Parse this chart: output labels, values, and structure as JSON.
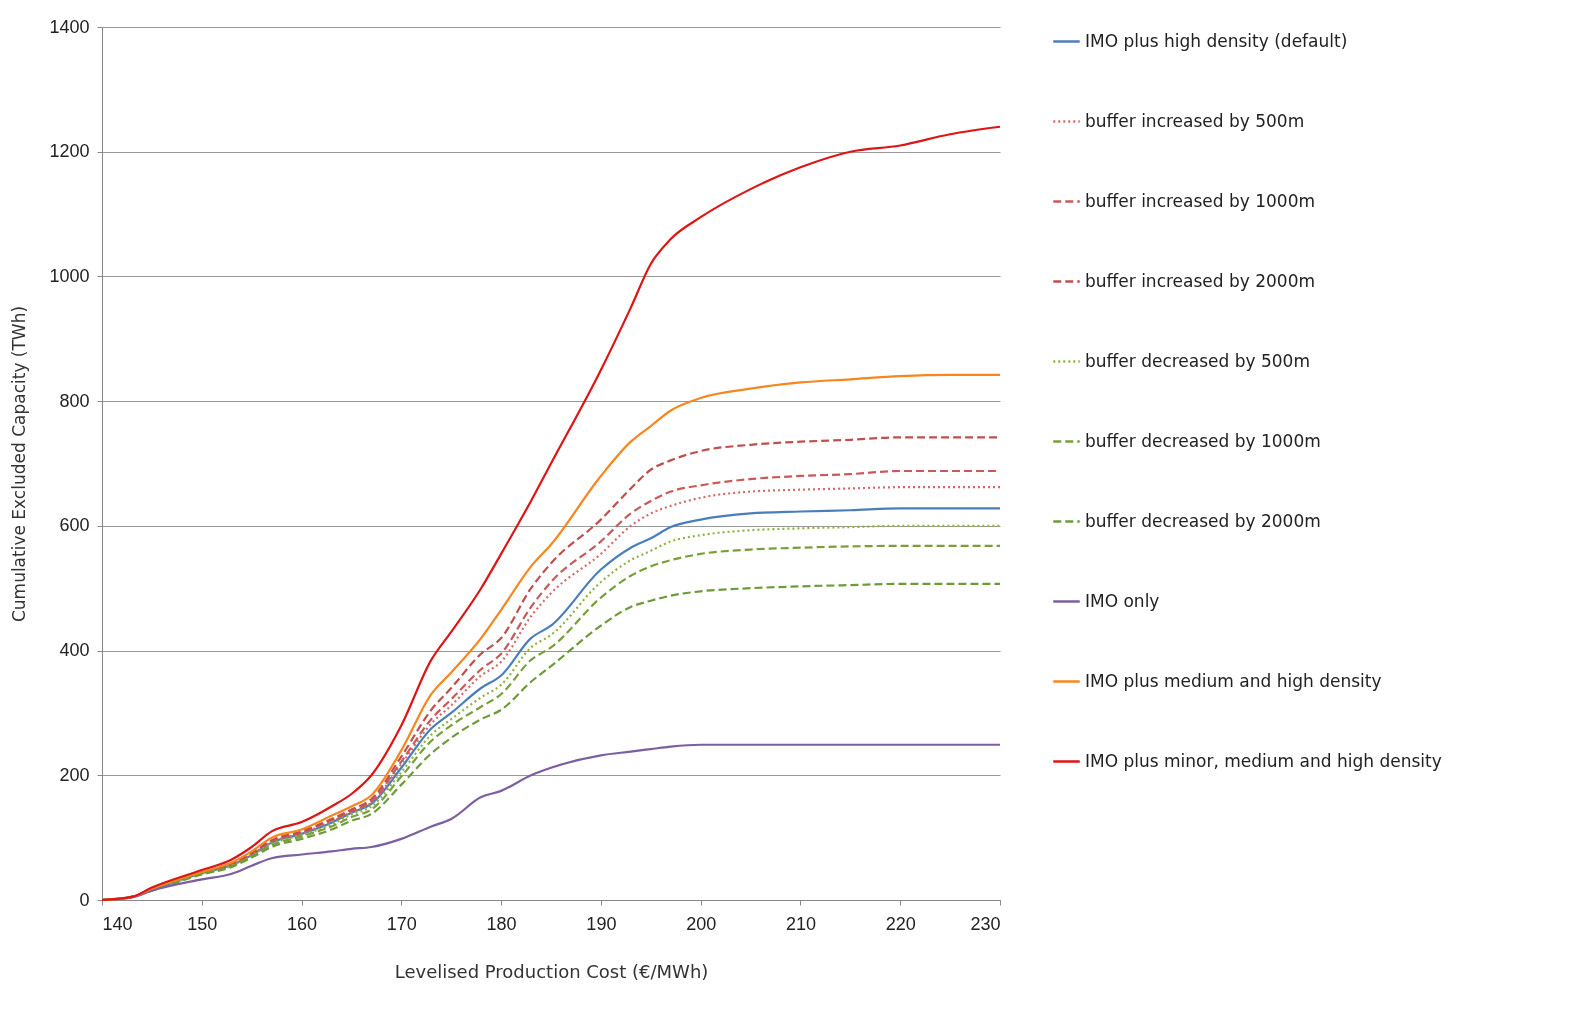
{
  "chart_data": {
    "type": "line",
    "xlabel": "Levelised Production Cost (€/MWh)",
    "ylabel": "Cumulative Excluded Capacity (TWh)",
    "x": [
      140,
      143,
      145,
      150,
      153,
      155,
      157,
      160,
      163,
      165,
      167,
      170,
      173,
      175,
      178,
      180,
      183,
      185,
      190,
      193,
      195,
      197,
      200,
      205,
      210,
      215,
      220,
      225,
      230
    ],
    "xlim": [
      140,
      230
    ],
    "xticks": [
      140,
      150,
      160,
      170,
      180,
      190,
      200,
      210,
      220,
      230
    ],
    "ylim": [
      0,
      1400
    ],
    "yticks": [
      0,
      200,
      400,
      600,
      800,
      1000,
      1200,
      1400
    ],
    "grid": "y",
    "legend": "right",
    "marker": "none",
    "series": [
      {
        "name": "IMO plus high density (default)",
        "color": "#4a7ebb",
        "line_style": "solid",
        "values": [
          0,
          5,
          16,
          43,
          56,
          72,
          92,
          106,
          124,
          140,
          154,
          212,
          275,
          300,
          340,
          360,
          420,
          440,
          530,
          565,
          580,
          598,
          610,
          620,
          623,
          625,
          628,
          628,
          628
        ]
      },
      {
        "name": "buffer increased by 500m",
        "color": "#d46a6a",
        "line_style": "dotted",
        "values": [
          0,
          5,
          17,
          44,
          57,
          73,
          93,
          107,
          126,
          141,
          156,
          218,
          283,
          312,
          360,
          382,
          455,
          492,
          555,
          600,
          620,
          632,
          645,
          655,
          658,
          660,
          662,
          662,
          662
        ]
      },
      {
        "name": "buffer increased by 1000m",
        "color": "#c85a5a",
        "line_style": "dashed",
        "values": [
          0,
          5,
          17,
          44,
          58,
          74,
          94,
          108,
          128,
          143,
          158,
          222,
          290,
          322,
          370,
          395,
          470,
          510,
          575,
          620,
          640,
          655,
          665,
          675,
          680,
          683,
          688,
          688,
          688
        ]
      },
      {
        "name": "buffer increased by 2000m",
        "color": "#c0504d",
        "line_style": "dashed",
        "values": [
          0,
          5,
          17,
          44,
          58,
          75,
          96,
          110,
          130,
          145,
          162,
          230,
          305,
          340,
          395,
          420,
          500,
          540,
          610,
          660,
          690,
          705,
          720,
          730,
          735,
          738,
          742,
          742,
          742
        ]
      },
      {
        "name": "buffer decreased by 500m",
        "color": "#8db33f",
        "line_style": "dotted",
        "values": [
          0,
          5,
          16,
          42,
          55,
          71,
          90,
          104,
          121,
          137,
          150,
          205,
          265,
          290,
          325,
          345,
          405,
          425,
          510,
          545,
          560,
          575,
          585,
          593,
          596,
          598,
          600,
          600,
          600
        ]
      },
      {
        "name": "buffer decreased by 1000m",
        "color": "#77a03b",
        "line_style": "dashed",
        "values": [
          0,
          5,
          16,
          42,
          54,
          70,
          88,
          102,
          118,
          133,
          145,
          198,
          255,
          280,
          310,
          330,
          385,
          405,
          485,
          520,
          535,
          545,
          555,
          562,
          565,
          567,
          568,
          568,
          568
        ]
      },
      {
        "name": "buffer decreased by 2000m",
        "color": "#6e9a3a",
        "line_style": "dashed",
        "values": [
          0,
          5,
          15,
          41,
          53,
          68,
          85,
          98,
          113,
          127,
          138,
          185,
          235,
          260,
          290,
          305,
          350,
          375,
          440,
          470,
          480,
          488,
          495,
          500,
          503,
          505,
          507,
          507,
          507
        ]
      },
      {
        "name": "IMO only",
        "color": "#7b5fa0",
        "line_style": "solid",
        "values": [
          0,
          4,
          15,
          33,
          42,
          55,
          67,
          73,
          78,
          82,
          85,
          98,
          118,
          130,
          165,
          175,
          200,
          212,
          232,
          238,
          242,
          246,
          249,
          249,
          249,
          249,
          249,
          249,
          249
        ]
      },
      {
        "name": "IMO plus medium and high density",
        "color": "#f7861e",
        "line_style": "solid",
        "values": [
          0,
          5,
          18,
          45,
          60,
          78,
          100,
          113,
          135,
          150,
          168,
          240,
          330,
          365,
          420,
          465,
          535,
          570,
          680,
          735,
          760,
          785,
          805,
          820,
          830,
          835,
          840,
          842,
          842
        ]
      },
      {
        "name": "IMO plus minor, medium and high density",
        "color": "#dd1515",
        "line_style": "solid",
        "values": [
          0,
          5,
          20,
          48,
          65,
          85,
          110,
          125,
          150,
          170,
          200,
          280,
          385,
          430,
          500,
          555,
          640,
          700,
          850,
          950,
          1020,
          1060,
          1095,
          1140,
          1175,
          1200,
          1210,
          1228,
          1240
        ]
      }
    ]
  }
}
